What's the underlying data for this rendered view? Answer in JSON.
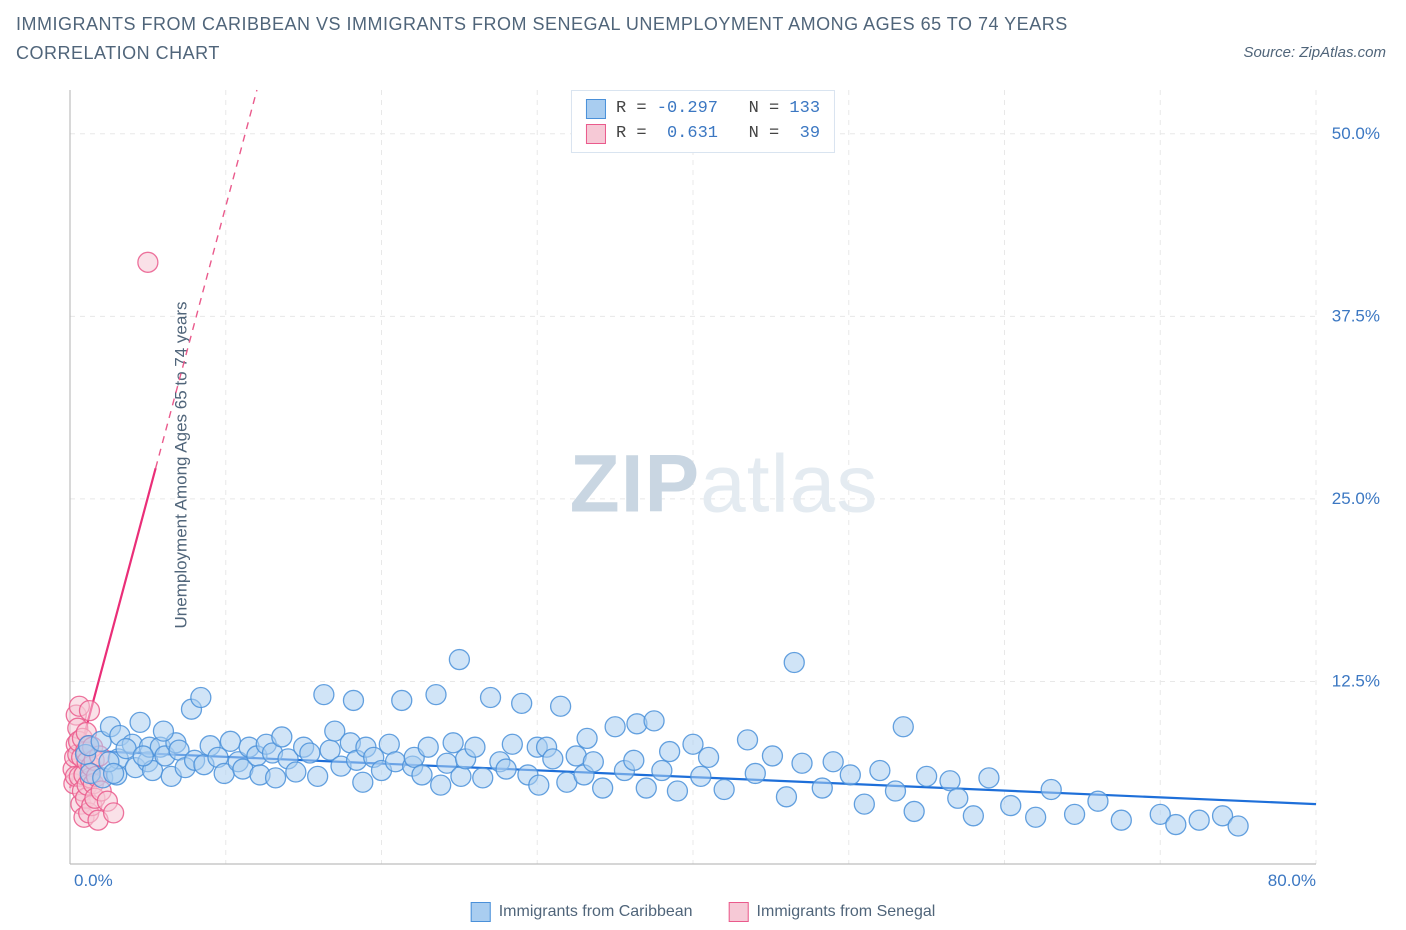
{
  "colors": {
    "title": "#50657a",
    "source": "#50657a",
    "axis_label": "#50657a",
    "grid": "#e8e8e8",
    "axis_line": "#bdbdbd",
    "blue_fill": "#a9cdf0",
    "blue_stroke": "#4a90d9",
    "blue_line": "#1e6fd9",
    "pink_fill": "#f6c9d6",
    "pink_stroke": "#ea5a8c",
    "pink_line": "#ea2e78",
    "tick_text": "#3b77c2",
    "watermark_zip": "#c9d6e2",
    "watermark_atlas": "#e4ebf1",
    "legend_border": "#d9e4f0",
    "legend_text_dark": "#444444",
    "legend_text_blue": "#3b77c2"
  },
  "title": "IMMIGRANTS FROM CARIBBEAN VS IMMIGRANTS FROM SENEGAL UNEMPLOYMENT AMONG AGES 65 TO 74 YEARS CORRELATION CHART",
  "source": "Source: ZipAtlas.com",
  "y_label": "Unemployment Among Ages 65 to 74 years",
  "watermark": {
    "a": "ZIP",
    "b": "atlas"
  },
  "chart": {
    "type": "scatter",
    "xlim": [
      0,
      80
    ],
    "ylim": [
      0,
      53
    ],
    "x_ticks": [
      0,
      10,
      20,
      30,
      40,
      50,
      60,
      70,
      80
    ],
    "x_tick_labels": {
      "0": "0.0%",
      "80": "80.0%"
    },
    "y_ticks": [
      12.5,
      25.0,
      37.5,
      50.0
    ],
    "y_tick_labels": [
      "12.5%",
      "25.0%",
      "37.5%",
      "50.0%"
    ],
    "marker_radius": 10,
    "marker_opacity": 0.55,
    "line_width_solid": 2.2,
    "line_width_dash": 1.4
  },
  "stats_box": {
    "rows": [
      {
        "series": "blue",
        "R": "-0.297",
        "N": "133"
      },
      {
        "series": "pink",
        "R": "0.631",
        "N": "39"
      }
    ],
    "labels": {
      "R": "R =",
      "N": "N ="
    }
  },
  "legend_bottom": [
    {
      "series": "blue",
      "label": "Immigrants from Caribbean"
    },
    {
      "series": "pink",
      "label": "Immigrants from Senegal"
    }
  ],
  "trend_lines": {
    "blue": {
      "x1": 0,
      "y1": 7.8,
      "x2": 80,
      "y2": 4.1,
      "solid_until_x": 80
    },
    "pink": {
      "x1": 0,
      "y1": 5.2,
      "x2": 12,
      "y2": 53,
      "solid_until_x": 5.5
    }
  },
  "series": {
    "blue": [
      [
        1.0,
        7.5
      ],
      [
        1.3,
        6.2
      ],
      [
        1.2,
        8.1
      ],
      [
        2.0,
        8.4
      ],
      [
        2.1,
        5.9
      ],
      [
        2.6,
        9.4
      ],
      [
        3.0,
        6.1
      ],
      [
        3.2,
        8.8
      ],
      [
        3.1,
        7.2
      ],
      [
        4.0,
        8.2
      ],
      [
        4.2,
        6.6
      ],
      [
        4.5,
        9.7
      ],
      [
        5.0,
        7.0
      ],
      [
        5.1,
        8.0
      ],
      [
        5.3,
        6.4
      ],
      [
        5.8,
        8.0
      ],
      [
        6.1,
        7.4
      ],
      [
        6.5,
        6.0
      ],
      [
        6.8,
        8.3
      ],
      [
        7.0,
        7.8
      ],
      [
        7.4,
        6.6
      ],
      [
        7.8,
        10.6
      ],
      [
        8.0,
        7.1
      ],
      [
        8.4,
        11.4
      ],
      [
        8.6,
        6.8
      ],
      [
        9.0,
        8.1
      ],
      [
        9.5,
        7.3
      ],
      [
        9.9,
        6.2
      ],
      [
        10.3,
        8.4
      ],
      [
        10.8,
        7.0
      ],
      [
        11.1,
        6.5
      ],
      [
        11.5,
        8.0
      ],
      [
        12.0,
        7.4
      ],
      [
        12.2,
        6.1
      ],
      [
        12.6,
        8.2
      ],
      [
        13.0,
        7.6
      ],
      [
        13.2,
        5.9
      ],
      [
        13.6,
        8.7
      ],
      [
        14.0,
        7.2
      ],
      [
        14.5,
        6.3
      ],
      [
        15.0,
        8.0
      ],
      [
        15.4,
        7.6
      ],
      [
        15.9,
        6.0
      ],
      [
        16.3,
        11.6
      ],
      [
        16.7,
        7.8
      ],
      [
        17.0,
        9.1
      ],
      [
        17.4,
        6.7
      ],
      [
        18.0,
        8.3
      ],
      [
        18.2,
        11.2
      ],
      [
        18.4,
        7.1
      ],
      [
        18.8,
        5.6
      ],
      [
        19.0,
        8.0
      ],
      [
        19.5,
        7.3
      ],
      [
        20.0,
        6.4
      ],
      [
        20.5,
        8.2
      ],
      [
        20.9,
        7.0
      ],
      [
        21.3,
        11.2
      ],
      [
        22.0,
        6.7
      ],
      [
        22.1,
        7.3
      ],
      [
        22.6,
        6.1
      ],
      [
        23.0,
        8.0
      ],
      [
        23.5,
        11.6
      ],
      [
        23.8,
        5.4
      ],
      [
        24.2,
        6.9
      ],
      [
        24.6,
        8.3
      ],
      [
        25.0,
        14.0
      ],
      [
        25.1,
        6.0
      ],
      [
        25.4,
        7.2
      ],
      [
        26.0,
        8.0
      ],
      [
        26.5,
        5.9
      ],
      [
        27.0,
        11.4
      ],
      [
        27.6,
        7.0
      ],
      [
        28.0,
        6.5
      ],
      [
        28.4,
        8.2
      ],
      [
        29.0,
        11.0
      ],
      [
        29.4,
        6.1
      ],
      [
        30.0,
        8.0
      ],
      [
        30.1,
        5.4
      ],
      [
        30.6,
        8.0
      ],
      [
        31.0,
        7.2
      ],
      [
        31.5,
        10.8
      ],
      [
        31.9,
        5.6
      ],
      [
        32.5,
        7.4
      ],
      [
        33.0,
        6.1
      ],
      [
        33.2,
        8.6
      ],
      [
        33.6,
        7.0
      ],
      [
        34.2,
        5.2
      ],
      [
        35.0,
        9.4
      ],
      [
        35.6,
        6.4
      ],
      [
        36.2,
        7.1
      ],
      [
        36.4,
        9.6
      ],
      [
        37.0,
        5.2
      ],
      [
        37.5,
        9.8
      ],
      [
        38.0,
        6.4
      ],
      [
        38.5,
        7.7
      ],
      [
        39.0,
        5.0
      ],
      [
        40.0,
        8.2
      ],
      [
        40.5,
        6.0
      ],
      [
        41.0,
        7.3
      ],
      [
        42.0,
        5.1
      ],
      [
        43.5,
        8.5
      ],
      [
        44.0,
        6.2
      ],
      [
        45.1,
        7.4
      ],
      [
        46.0,
        4.6
      ],
      [
        46.5,
        13.8
      ],
      [
        47.0,
        6.9
      ],
      [
        48.3,
        5.2
      ],
      [
        49.0,
        7.0
      ],
      [
        50.1,
        6.1
      ],
      [
        51.0,
        4.1
      ],
      [
        52.0,
        6.4
      ],
      [
        53.0,
        5.0
      ],
      [
        53.5,
        9.4
      ],
      [
        54.2,
        3.6
      ],
      [
        55.0,
        6.0
      ],
      [
        56.5,
        5.7
      ],
      [
        57.0,
        4.5
      ],
      [
        58.0,
        3.3
      ],
      [
        59.0,
        5.9
      ],
      [
        60.4,
        4.0
      ],
      [
        62.0,
        3.2
      ],
      [
        63.0,
        5.1
      ],
      [
        64.5,
        3.4
      ],
      [
        66.0,
        4.3
      ],
      [
        67.5,
        3.0
      ],
      [
        70.0,
        3.4
      ],
      [
        71.0,
        2.7
      ],
      [
        72.5,
        3.0
      ],
      [
        74.0,
        3.3
      ],
      [
        75.0,
        2.6
      ],
      [
        2.5,
        7.0
      ],
      [
        2.8,
        6.2
      ],
      [
        3.6,
        7.9
      ],
      [
        4.7,
        7.4
      ],
      [
        6.0,
        9.1
      ]
    ],
    "pink": [
      [
        0.2,
        6.5
      ],
      [
        0.3,
        7.3
      ],
      [
        0.25,
        5.5
      ],
      [
        0.4,
        8.2
      ],
      [
        0.35,
        6.0
      ],
      [
        0.4,
        10.2
      ],
      [
        0.5,
        7.5
      ],
      [
        0.5,
        9.3
      ],
      [
        0.6,
        6.0
      ],
      [
        0.55,
        8.4
      ],
      [
        0.7,
        4.1
      ],
      [
        0.6,
        10.8
      ],
      [
        0.75,
        7.3
      ],
      [
        0.8,
        5.0
      ],
      [
        0.8,
        8.6
      ],
      [
        0.9,
        6.1
      ],
      [
        0.9,
        3.2
      ],
      [
        1.0,
        7.7
      ],
      [
        1.0,
        4.5
      ],
      [
        1.05,
        9.0
      ],
      [
        1.1,
        5.4
      ],
      [
        1.1,
        7.0
      ],
      [
        1.2,
        3.5
      ],
      [
        1.2,
        8.1
      ],
      [
        1.3,
        5.9
      ],
      [
        1.25,
        10.5
      ],
      [
        1.35,
        6.7
      ],
      [
        1.4,
        4.0
      ],
      [
        1.45,
        8.0
      ],
      [
        1.5,
        5.5
      ],
      [
        1.55,
        7.1
      ],
      [
        1.6,
        4.5
      ],
      [
        1.7,
        6.0
      ],
      [
        1.8,
        3.0
      ],
      [
        1.9,
        7.4
      ],
      [
        2.0,
        5.0
      ],
      [
        2.4,
        4.3
      ],
      [
        2.8,
        3.5
      ],
      [
        5.0,
        41.2
      ]
    ]
  }
}
